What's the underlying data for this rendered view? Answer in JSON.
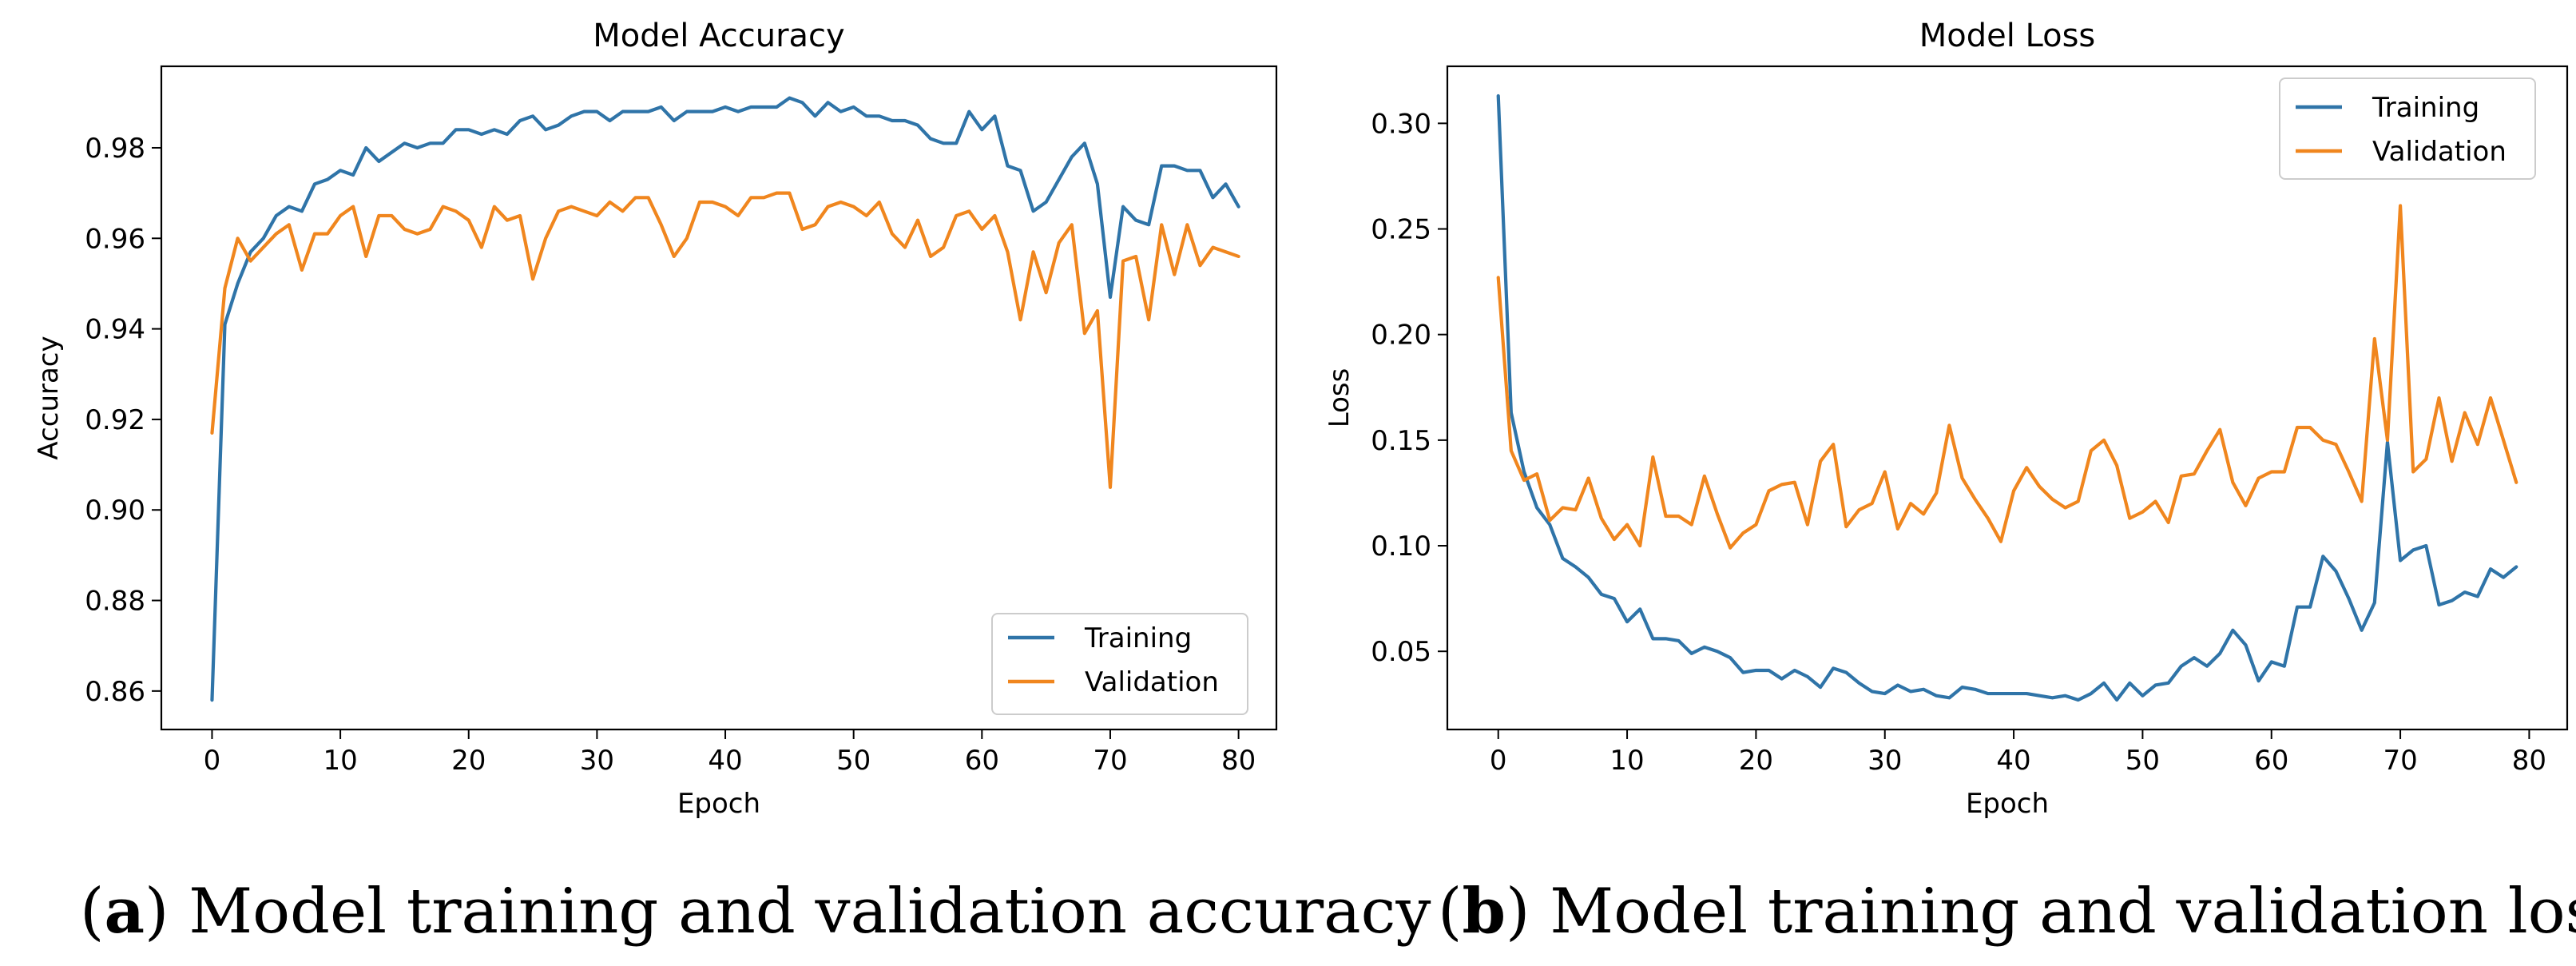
{
  "colors": {
    "training": "#2f74a8",
    "validation": "#f0861e"
  },
  "captions": {
    "a": {
      "letter": "a",
      "text": "Model training and validation accuracy"
    },
    "b": {
      "letter": "b",
      "text": "Model training and validation loss"
    }
  },
  "chart_data": [
    {
      "type": "line",
      "title": "Model Accuracy",
      "xlabel": "Epoch",
      "ylabel": "Accuracy",
      "xlim": [
        -3.95,
        82.95
      ],
      "ylim": [
        0.8515,
        0.998
      ],
      "xticks": [
        0,
        10,
        20,
        30,
        40,
        50,
        60,
        70,
        80
      ],
      "yticks": [
        0.86,
        0.88,
        0.9,
        0.92,
        0.94,
        0.96,
        0.98
      ],
      "ytick_labels": [
        "0.86",
        "0.88",
        "0.90",
        "0.92",
        "0.94",
        "0.96",
        "0.98"
      ],
      "legend": "lower-right",
      "grid": false,
      "series": [
        {
          "name": "Training",
          "values": [
            0.858,
            0.941,
            0.95,
            0.957,
            0.96,
            0.965,
            0.967,
            0.966,
            0.972,
            0.973,
            0.975,
            0.974,
            0.98,
            0.977,
            0.979,
            0.981,
            0.98,
            0.981,
            0.981,
            0.984,
            0.984,
            0.983,
            0.984,
            0.983,
            0.986,
            0.987,
            0.984,
            0.985,
            0.987,
            0.988,
            0.988,
            0.986,
            0.988,
            0.988,
            0.988,
            0.989,
            0.986,
            0.988,
            0.988,
            0.988,
            0.989,
            0.988,
            0.989,
            0.989,
            0.989,
            0.991,
            0.99,
            0.987,
            0.99,
            0.988,
            0.989,
            0.987,
            0.987,
            0.986,
            0.986,
            0.985,
            0.982,
            0.981,
            0.981,
            0.988,
            0.984,
            0.987,
            0.976,
            0.975,
            0.966,
            0.968,
            0.973,
            0.978,
            0.981,
            0.972,
            0.947,
            0.967,
            0.964,
            0.963,
            0.976,
            0.976,
            0.975,
            0.975,
            0.969,
            0.972,
            0.967
          ]
        },
        {
          "name": "Validation",
          "values": [
            0.917,
            0.949,
            0.96,
            0.955,
            0.958,
            0.961,
            0.963,
            0.953,
            0.961,
            0.961,
            0.965,
            0.967,
            0.956,
            0.965,
            0.965,
            0.962,
            0.961,
            0.962,
            0.967,
            0.966,
            0.964,
            0.958,
            0.967,
            0.964,
            0.965,
            0.951,
            0.96,
            0.966,
            0.967,
            0.966,
            0.965,
            0.968,
            0.966,
            0.969,
            0.969,
            0.963,
            0.956,
            0.96,
            0.968,
            0.968,
            0.967,
            0.965,
            0.969,
            0.969,
            0.97,
            0.97,
            0.962,
            0.963,
            0.967,
            0.968,
            0.967,
            0.965,
            0.968,
            0.961,
            0.958,
            0.964,
            0.956,
            0.958,
            0.965,
            0.966,
            0.962,
            0.965,
            0.957,
            0.942,
            0.957,
            0.948,
            0.959,
            0.963,
            0.939,
            0.944,
            0.905,
            0.955,
            0.956,
            0.942,
            0.963,
            0.952,
            0.963,
            0.954,
            0.958,
            0.957,
            0.956
          ]
        }
      ]
    },
    {
      "type": "line",
      "title": "Model Loss",
      "xlabel": "Epoch",
      "ylabel": "Loss",
      "xlim": [
        -3.95,
        82.95
      ],
      "ylim": [
        0.013,
        0.327
      ],
      "xticks": [
        0,
        10,
        20,
        30,
        40,
        50,
        60,
        70,
        80
      ],
      "yticks": [
        0.05,
        0.1,
        0.15,
        0.2,
        0.25,
        0.3
      ],
      "ytick_labels": [
        "0.05",
        "0.10",
        "0.15",
        "0.20",
        "0.25",
        "0.30"
      ],
      "legend": "top-right",
      "grid": false,
      "series": [
        {
          "name": "Training",
          "values": [
            0.313,
            0.163,
            0.135,
            0.118,
            0.11,
            0.094,
            0.09,
            0.085,
            0.077,
            0.075,
            0.064,
            0.07,
            0.056,
            0.056,
            0.055,
            0.049,
            0.052,
            0.05,
            0.047,
            0.04,
            0.041,
            0.041,
            0.037,
            0.041,
            0.038,
            0.033,
            0.042,
            0.04,
            0.035,
            0.031,
            0.03,
            0.034,
            0.031,
            0.032,
            0.029,
            0.028,
            0.033,
            0.032,
            0.03,
            0.03,
            0.03,
            0.03,
            0.029,
            0.028,
            0.029,
            0.027,
            0.03,
            0.035,
            0.027,
            0.035,
            0.029,
            0.034,
            0.035,
            0.043,
            0.047,
            0.043,
            0.049,
            0.06,
            0.053,
            0.036,
            0.045,
            0.043,
            0.071,
            0.071,
            0.095,
            0.088,
            0.075,
            0.06,
            0.073,
            0.149,
            0.093,
            0.098,
            0.1,
            0.072,
            0.074,
            0.078,
            0.076,
            0.089,
            0.085,
            0.09
          ]
        },
        {
          "name": "Validation",
          "values": [
            0.227,
            0.145,
            0.131,
            0.134,
            0.112,
            0.118,
            0.117,
            0.132,
            0.113,
            0.103,
            0.11,
            0.1,
            0.142,
            0.114,
            0.114,
            0.11,
            0.133,
            0.115,
            0.099,
            0.106,
            0.11,
            0.126,
            0.129,
            0.13,
            0.11,
            0.14,
            0.148,
            0.109,
            0.117,
            0.12,
            0.135,
            0.108,
            0.12,
            0.115,
            0.125,
            0.157,
            0.132,
            0.122,
            0.113,
            0.102,
            0.126,
            0.137,
            0.128,
            0.122,
            0.118,
            0.121,
            0.145,
            0.15,
            0.138,
            0.113,
            0.116,
            0.121,
            0.111,
            0.133,
            0.134,
            0.145,
            0.155,
            0.13,
            0.119,
            0.132,
            0.135,
            0.135,
            0.156,
            0.156,
            0.15,
            0.148,
            0.135,
            0.121,
            0.198,
            0.15,
            0.261,
            0.135,
            0.141,
            0.17,
            0.14,
            0.163,
            0.148,
            0.17,
            0.15,
            0.13
          ]
        }
      ]
    }
  ]
}
